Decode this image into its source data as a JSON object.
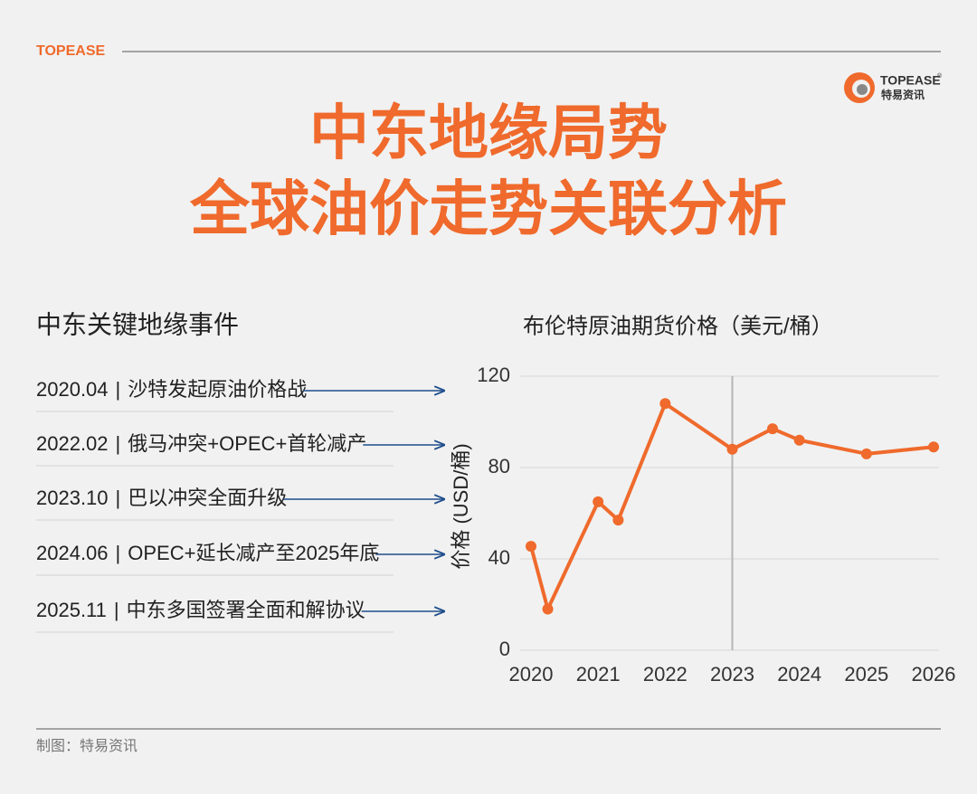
{
  "brand": "TOPEASE",
  "logo": {
    "name": "TOPEASE",
    "mark": "®",
    "sub": "特易资讯"
  },
  "title_lines": [
    "中东地缘局势",
    "全球油价走势关联分析"
  ],
  "events": {
    "heading": "中东关键地缘事件",
    "separator": "|",
    "items": [
      {
        "date": "2020.04",
        "text": "沙特发起原油价格战"
      },
      {
        "date": "2022.02",
        "text": "俄马冲突+OPEC+首轮减产"
      },
      {
        "date": "2023.10",
        "text": "巴以冲突全面升级"
      },
      {
        "date": "2024.06",
        "text": "OPEC+延长减产至2025年底"
      },
      {
        "date": "2025.11",
        "text": "中东多国签署全面和解协议"
      }
    ]
  },
  "chart_data": {
    "type": "line",
    "title": "布伦特原油期货价格（美元/桶）",
    "y_label": "价格 (USD/桶)",
    "x": [
      2020,
      2020.25,
      2021,
      2021.3,
      2022,
      2023,
      2023.6,
      2024,
      2025,
      2026
    ],
    "series": [
      {
        "name": "布伦特原油期货价格",
        "color": "#ef6a2c",
        "values": [
          45.5,
          18,
          65,
          57,
          108,
          88,
          97,
          92,
          86,
          89
        ]
      }
    ],
    "xlim": [
      2020,
      2026
    ],
    "xticks": [
      2020,
      2021,
      2022,
      2023,
      2024,
      2025,
      2026
    ],
    "ylim": [
      0,
      120
    ],
    "yticks": [
      0,
      40,
      80,
      120
    ],
    "grid": true,
    "highlight_x": 2023
  },
  "footer": "制图：特易资讯"
}
